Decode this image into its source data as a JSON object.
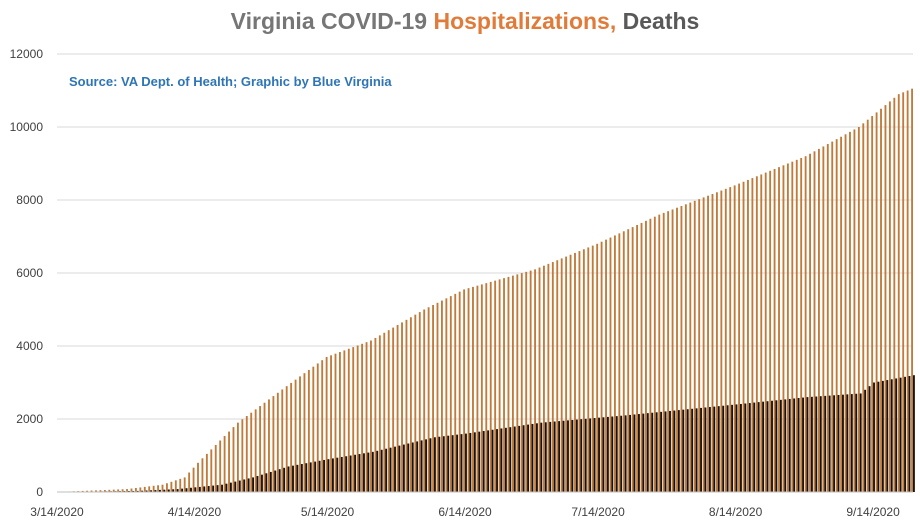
{
  "chart_data": {
    "type": "bar",
    "title_parts": [
      {
        "text": "Virginia COVID-19 ",
        "color": "#767676"
      },
      {
        "text": "Hospitalizations, ",
        "color": "#e07b39"
      },
      {
        "text": "Deaths",
        "color": "#595959"
      }
    ],
    "source": "Source: VA Dept. of Health; Graphic by Blue Virginia",
    "x_range": [
      "3/14/2020",
      "9/23/2020"
    ],
    "x_tick_labels": [
      "3/14/2020",
      "4/14/2020",
      "5/14/2020",
      "6/14/2020",
      "7/14/2020",
      "8/14/2020",
      "9/14/2020"
    ],
    "ylim": [
      0,
      12000
    ],
    "y_ticks": [
      0,
      2000,
      4000,
      6000,
      8000,
      10000,
      12000
    ],
    "grid": true,
    "series": [
      {
        "color": "#c07a3a",
        "values": [
          0,
          80,
          200,
          400,
          800,
          1900,
          2900,
          3700,
          4150,
          5000,
          5550,
          6100,
          6800,
          7600,
          8400,
          9200,
          10000,
          10900,
          11050
        ],
        "dates": [
          "3/14/2020",
          "3/30/2020",
          "4/7/2020",
          "4/12/2020",
          "4/15/2020",
          "4/24/2020",
          "5/5/2020",
          "5/14/2020",
          "5/24/2020",
          "6/5/2020",
          "6/14/2020",
          "6/30/2020",
          "7/14/2020",
          "7/28/2020",
          "8/14/2020",
          "8/30/2020",
          "9/11/2020",
          "9/20/2020",
          "9/23/2020"
        ]
      },
      {
        "color": "#1a1109",
        "values": [
          0,
          30,
          80,
          200,
          400,
          700,
          900,
          1100,
          1500,
          1600,
          1900,
          2100,
          2400,
          2600,
          2700,
          3000,
          3200
        ],
        "dates": [
          "3/14/2020",
          "4/1/2020",
          "4/10/2020",
          "4/20/2020",
          "4/27/2020",
          "5/5/2020",
          "5/14/2020",
          "5/24/2020",
          "6/7/2020",
          "6/14/2020",
          "7/1/2020",
          "7/20/2020",
          "8/14/2020",
          "8/30/2020",
          "9/11/2020",
          "9/14/2020",
          "9/23/2020"
        ]
      }
    ]
  }
}
